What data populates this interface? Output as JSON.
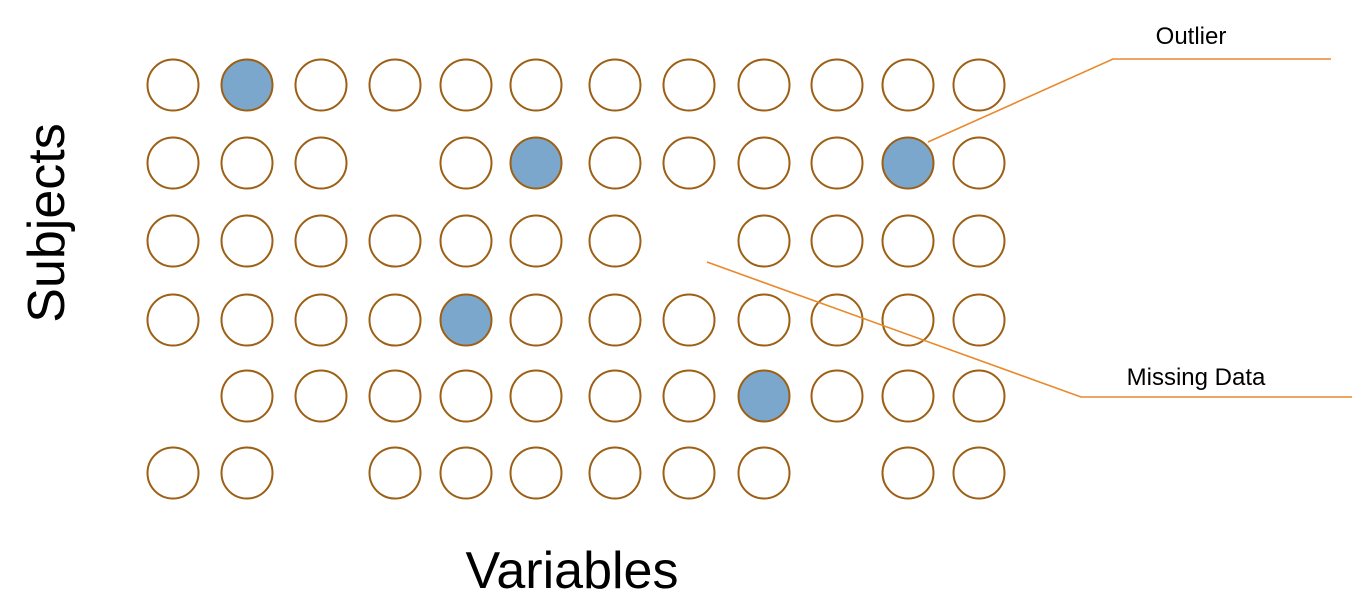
{
  "diagram": {
    "y_axis_title": "Subjects",
    "x_axis_title": "Variables",
    "annotations": {
      "outlier_label": "Outlier",
      "missing_label": "Missing Data"
    },
    "grid": {
      "rows": 6,
      "columns": 12,
      "cells": [
        [
          "empty",
          "filled",
          "empty",
          "empty",
          "empty",
          "empty",
          "empty",
          "empty",
          "empty",
          "empty",
          "empty",
          "empty"
        ],
        [
          "empty",
          "empty",
          "empty",
          "missing",
          "empty",
          "filled",
          "empty",
          "empty",
          "empty",
          "empty",
          "filled",
          "empty"
        ],
        [
          "empty",
          "empty",
          "empty",
          "empty",
          "empty",
          "empty",
          "empty",
          "missing",
          "empty",
          "empty",
          "empty",
          "empty"
        ],
        [
          "empty",
          "empty",
          "empty",
          "empty",
          "filled",
          "empty",
          "empty",
          "empty",
          "empty",
          "empty",
          "empty",
          "empty"
        ],
        [
          "missing",
          "empty",
          "empty",
          "empty",
          "empty",
          "empty",
          "empty",
          "empty",
          "filled",
          "empty",
          "empty",
          "empty"
        ],
        [
          "empty",
          "empty",
          "missing",
          "empty",
          "empty",
          "empty",
          "empty",
          "empty",
          "empty",
          "missing",
          "empty",
          "empty"
        ]
      ]
    },
    "colors": {
      "stroke": "#9C5F14",
      "filled": "#7BA7CC",
      "leader_line": "#E8892B",
      "empty_fill": "#FFFFFF"
    }
  }
}
